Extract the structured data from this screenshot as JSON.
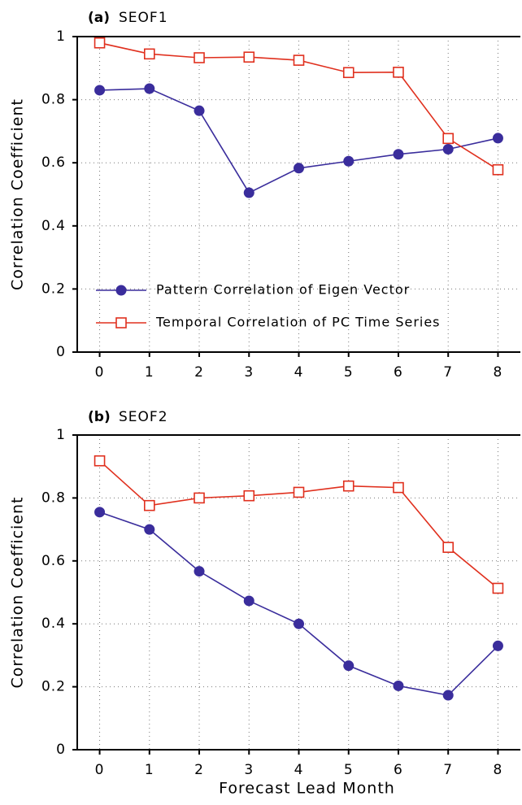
{
  "chart_data": [
    {
      "type": "line",
      "panel": "(a)",
      "title": "SEOF1",
      "y_label": "Correlation Coefficient",
      "x": [
        0,
        1,
        2,
        3,
        4,
        5,
        6,
        7,
        8
      ],
      "xlim": [
        -0.45,
        8.45
      ],
      "xticks": [
        0,
        1,
        2,
        3,
        4,
        5,
        6,
        7,
        8
      ],
      "ylim": [
        0,
        1
      ],
      "yticks": [
        0,
        0.2,
        0.4,
        0.6,
        0.8,
        1
      ],
      "grid": true,
      "series": [
        {
          "name": "Pattern Correlation of Eigen Vector",
          "color": "#3a2d9c",
          "marker": "circle",
          "values": [
            0.83,
            0.835,
            0.765,
            0.505,
            0.583,
            0.605,
            0.627,
            0.643,
            0.678
          ]
        },
        {
          "name": "Temporal Correlation of PC Time Series",
          "color": "#e0301e",
          "marker": "square",
          "values": [
            0.98,
            0.945,
            0.933,
            0.935,
            0.925,
            0.886,
            0.887,
            0.677,
            0.578
          ]
        }
      ]
    },
    {
      "type": "line",
      "panel": "(b)",
      "title": "SEOF2",
      "y_label": "Correlation Coefficient",
      "x_label": "Forecast Lead Month",
      "x": [
        0,
        1,
        2,
        3,
        4,
        5,
        6,
        7,
        8
      ],
      "xlim": [
        -0.45,
        8.45
      ],
      "xticks": [
        0,
        1,
        2,
        3,
        4,
        5,
        6,
        7,
        8
      ],
      "ylim": [
        0,
        1
      ],
      "yticks": [
        0,
        0.2,
        0.4,
        0.6,
        0.8,
        1
      ],
      "grid": true,
      "series": [
        {
          "color": "#3a2d9c",
          "marker": "circle",
          "values": [
            0.755,
            0.7,
            0.567,
            0.473,
            0.4,
            0.267,
            0.203,
            0.173,
            0.33
          ]
        },
        {
          "color": "#e0301e",
          "marker": "square",
          "values": [
            0.918,
            0.776,
            0.8,
            0.807,
            0.818,
            0.838,
            0.833,
            0.643,
            0.513
          ]
        }
      ]
    }
  ]
}
